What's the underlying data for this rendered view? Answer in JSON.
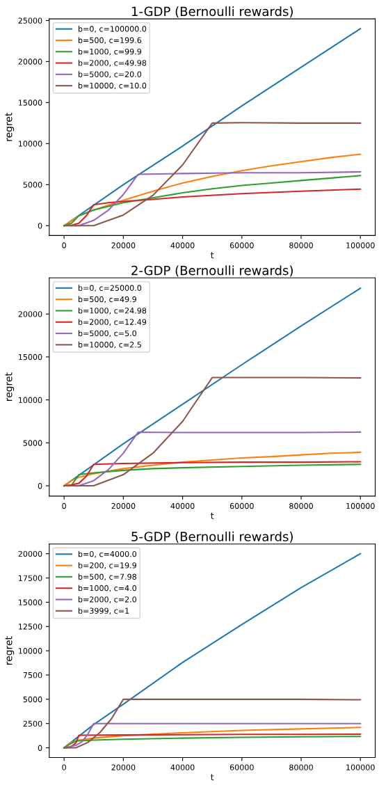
{
  "chart_data": [
    {
      "type": "line",
      "title": "1-GDP (Bernoulli rewards)",
      "xlabel": "t",
      "ylabel": "regret",
      "xlim": [
        -5000,
        105000
      ],
      "ylim": [
        -1200,
        25200
      ],
      "xticks": [
        0,
        20000,
        40000,
        60000,
        80000,
        100000
      ],
      "yticks": [
        0,
        5000,
        10000,
        15000,
        20000,
        25000
      ],
      "legend": "top left",
      "grid": false,
      "series": [
        {
          "name": "b=0, c=100000.0",
          "color": "#1f77b4",
          "x": [
            0,
            20000,
            40000,
            60000,
            80000,
            100000
          ],
          "values": [
            0,
            5000,
            9700,
            14600,
            19300,
            24000
          ]
        },
        {
          "name": "b=500, c=199.6",
          "color": "#ff7f0e",
          "x": [
            0,
            5000,
            10000,
            20000,
            30000,
            40000,
            50000,
            60000,
            70000,
            80000,
            90000,
            100000
          ],
          "values": [
            0,
            1200,
            1900,
            3100,
            4200,
            5200,
            6000,
            6700,
            7300,
            7800,
            8300,
            8700
          ]
        },
        {
          "name": "b=1000, c=99.9",
          "color": "#2ca02c",
          "x": [
            0,
            2500,
            5000,
            10000,
            20000,
            30000,
            40000,
            50000,
            60000,
            70000,
            80000,
            90000,
            100000
          ],
          "values": [
            0,
            300,
            1200,
            1900,
            2800,
            3400,
            4000,
            4500,
            4900,
            5200,
            5500,
            5800,
            6100
          ]
        },
        {
          "name": "b=2000, c=49.98",
          "color": "#d62728",
          "x": [
            0,
            2500,
            5000,
            7500,
            10000,
            15000,
            20000,
            30000,
            40000,
            60000,
            80000,
            100000
          ],
          "values": [
            0,
            50,
            300,
            1200,
            2550,
            2800,
            2950,
            3200,
            3500,
            3900,
            4200,
            4450
          ]
        },
        {
          "name": "b=5000, c=20.0",
          "color": "#9467bd",
          "x": [
            0,
            5000,
            10000,
            15000,
            20000,
            25000,
            40000,
            60000,
            80000,
            100000
          ],
          "values": [
            0,
            0,
            650,
            1900,
            3800,
            6250,
            6350,
            6450,
            6450,
            6550
          ]
        },
        {
          "name": "b=10000, c=10.0",
          "color": "#8c564b",
          "x": [
            0,
            10000,
            20000,
            30000,
            40000,
            50000,
            60000,
            80000,
            100000
          ],
          "values": [
            0,
            0,
            1300,
            3700,
            7400,
            12500,
            12550,
            12500,
            12500
          ]
        }
      ]
    },
    {
      "type": "line",
      "title": "2-GDP (Bernoulli rewards)",
      "xlabel": "t",
      "ylabel": "regret",
      "xlim": [
        -5000,
        105000
      ],
      "ylim": [
        -1200,
        24200
      ],
      "xticks": [
        0,
        20000,
        40000,
        60000,
        80000,
        100000
      ],
      "yticks": [
        0,
        5000,
        10000,
        15000,
        20000
      ],
      "legend": "top left",
      "grid": false,
      "series": [
        {
          "name": "b=0, c=25000.0",
          "color": "#1f77b4",
          "x": [
            0,
            20000,
            40000,
            60000,
            80000,
            100000
          ],
          "values": [
            0,
            4900,
            9500,
            14100,
            18600,
            23000
          ]
        },
        {
          "name": "b=500, c=49.9",
          "color": "#ff7f0e",
          "x": [
            0,
            2500,
            5000,
            10000,
            20000,
            30000,
            40000,
            50000,
            60000,
            70000,
            80000,
            90000,
            100000
          ],
          "values": [
            0,
            600,
            1000,
            1400,
            2000,
            2400,
            2750,
            3000,
            3250,
            3400,
            3600,
            3800,
            3900
          ]
        },
        {
          "name": "b=1000, c=24.98",
          "color": "#2ca02c",
          "x": [
            0,
            2500,
            5000,
            10000,
            20000,
            30000,
            40000,
            60000,
            80000,
            100000
          ],
          "values": [
            0,
            50,
            1300,
            1500,
            1800,
            2000,
            2100,
            2250,
            2400,
            2500
          ]
        },
        {
          "name": "b=2000, c=12.49",
          "color": "#d62728",
          "x": [
            0,
            2500,
            5000,
            7500,
            10000,
            20000,
            40000,
            60000,
            80000,
            100000
          ],
          "values": [
            0,
            100,
            300,
            1100,
            2500,
            2600,
            2700,
            2750,
            2750,
            2800
          ]
        },
        {
          "name": "b=5000, c=5.0",
          "color": "#9467bd",
          "x": [
            0,
            5000,
            10000,
            15000,
            20000,
            25000,
            40000,
            60000,
            80000,
            100000
          ],
          "values": [
            0,
            0,
            600,
            1900,
            3800,
            6250,
            6200,
            6200,
            6200,
            6250
          ]
        },
        {
          "name": "b=10000, c=2.5",
          "color": "#8c564b",
          "x": [
            0,
            10000,
            20000,
            30000,
            40000,
            50000,
            60000,
            80000,
            100000
          ],
          "values": [
            0,
            0,
            1300,
            3800,
            7500,
            12600,
            12600,
            12600,
            12550
          ]
        }
      ]
    },
    {
      "type": "line",
      "title": "5-GDP (Bernoulli rewards)",
      "xlabel": "t",
      "ylabel": "regret",
      "xlim": [
        -5000,
        105000
      ],
      "ylim": [
        -1000,
        21000
      ],
      "xticks": [
        0,
        20000,
        40000,
        60000,
        80000,
        100000
      ],
      "yticks": [
        0,
        2500,
        5000,
        7500,
        10000,
        12500,
        15000,
        17500,
        20000
      ],
      "legend": "top left",
      "grid": false,
      "series": [
        {
          "name": "b=0, c=4000.0",
          "color": "#1f77b4",
          "x": [
            0,
            10000,
            20000,
            40000,
            60000,
            80000,
            100000
          ],
          "values": [
            0,
            2400,
            4500,
            8800,
            12700,
            16500,
            20000
          ]
        },
        {
          "name": "b=200, c=19.9",
          "color": "#ff7f0e",
          "x": [
            0,
            2000,
            5000,
            10000,
            20000,
            40000,
            60000,
            80000,
            100000
          ],
          "values": [
            0,
            500,
            800,
            1000,
            1250,
            1550,
            1800,
            1950,
            2100
          ]
        },
        {
          "name": "b=500, c=7.98",
          "color": "#2ca02c",
          "x": [
            0,
            2000,
            4000,
            10000,
            20000,
            40000,
            60000,
            80000,
            100000
          ],
          "values": [
            0,
            400,
            700,
            800,
            880,
            1000,
            1080,
            1130,
            1170
          ]
        },
        {
          "name": "b=1000, c=4.0",
          "color": "#d62728",
          "x": [
            0,
            2000,
            4000,
            5000,
            20000,
            40000,
            60000,
            80000,
            100000
          ],
          "values": [
            0,
            50,
            500,
            1300,
            1320,
            1350,
            1380,
            1380,
            1400
          ]
        },
        {
          "name": "b=2000, c=2.0",
          "color": "#9467bd",
          "x": [
            0,
            4000,
            6000,
            8000,
            10000,
            40000,
            70000,
            100000
          ],
          "values": [
            0,
            250,
            600,
            1400,
            2500,
            2500,
            2500,
            2500
          ]
        },
        {
          "name": "b=3999, c=1",
          "color": "#8c564b",
          "x": [
            0,
            4000,
            8000,
            12000,
            16000,
            20000,
            40000,
            60000,
            80000,
            100000
          ],
          "values": [
            0,
            0,
            550,
            1550,
            3000,
            5000,
            5000,
            5000,
            5000,
            4950
          ]
        }
      ]
    }
  ]
}
